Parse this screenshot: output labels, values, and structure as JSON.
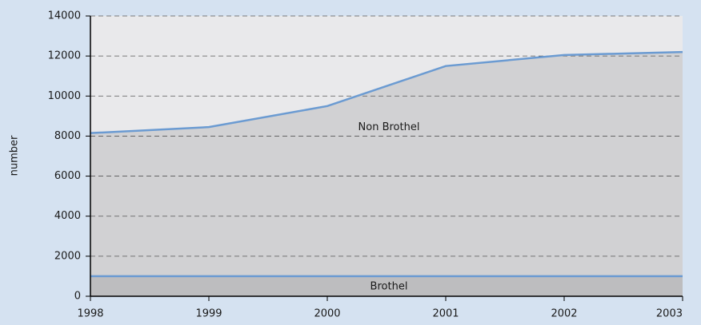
{
  "chart_data": {
    "type": "stacked-area",
    "y_label": "number",
    "x": [
      1998,
      1999,
      2000,
      2001,
      2002,
      2003
    ],
    "xlim": [
      1998,
      2003
    ],
    "xticks": [
      1998,
      1999,
      2000,
      2001,
      2002,
      2003
    ],
    "ylim": [
      0,
      14000
    ],
    "yticks": [
      0,
      2000,
      4000,
      6000,
      8000,
      10000,
      12000,
      14000
    ],
    "grid": true,
    "line_color": "#6b9bd2",
    "series": [
      {
        "name": "Brothel",
        "color": "#bdbdbf",
        "values": [
          1000,
          1000,
          1000,
          1000,
          1000,
          1000
        ]
      },
      {
        "name": "Non Brothel",
        "color": "#d1d1d3",
        "values": [
          7150,
          7450,
          8500,
          10500,
          11050,
          11200
        ]
      }
    ]
  }
}
